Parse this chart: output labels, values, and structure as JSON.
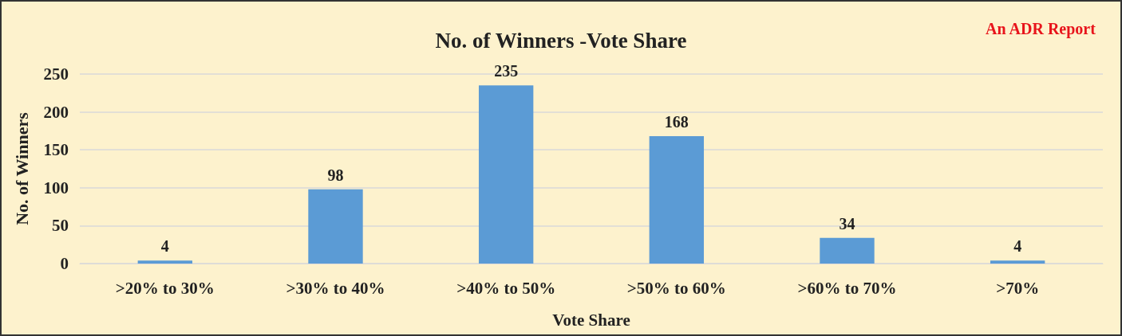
{
  "chart_data": {
    "type": "bar",
    "title": "No. of Winners -Vote Share",
    "xlabel": "Vote Share",
    "ylabel": "No. of Winners",
    "categories": [
      ">20% to 30%",
      ">30% to 40%",
      ">40% to 50%",
      ">50% to 60%",
      ">60% to 70%",
      ">70%"
    ],
    "values": [
      4,
      98,
      235,
      168,
      34,
      4
    ],
    "color": "#5b9bd5",
    "ylim": [
      0,
      250
    ],
    "yticks": [
      0,
      50,
      100,
      150,
      200,
      250
    ],
    "grid": "y",
    "data_labels": true,
    "annotations": [
      "An ADR Report"
    ]
  }
}
